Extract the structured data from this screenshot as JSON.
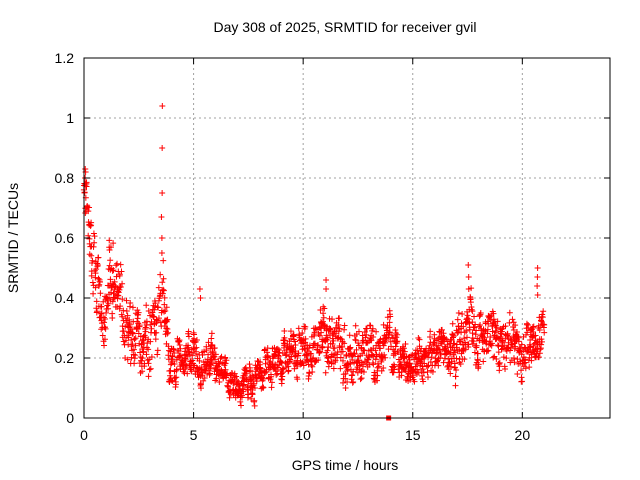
{
  "chart_data": {
    "type": "scatter",
    "title": "Day 308 of 2025, SRMTID for receiver gvil",
    "xlabel": "GPS time / hours",
    "ylabel": "SRMTID / TECUs",
    "xlim": [
      0,
      24
    ],
    "ylim": [
      0,
      1.2
    ],
    "x_ticks": [
      "0",
      "5",
      "10",
      "15",
      "20"
    ],
    "y_ticks": [
      "0",
      "0.2",
      "0.4",
      "0.6",
      "0.8",
      "1",
      "1.2"
    ],
    "grid": true,
    "legend": "none",
    "marker": "+",
    "color": "#ff0000",
    "envelope": [
      {
        "x": 0.0,
        "y": 0.8,
        "spread": 0.06
      },
      {
        "x": 0.15,
        "y": 0.7,
        "spread": 0.08
      },
      {
        "x": 0.4,
        "y": 0.58,
        "spread": 0.1
      },
      {
        "x": 0.6,
        "y": 0.42,
        "spread": 0.12
      },
      {
        "x": 0.9,
        "y": 0.32,
        "spread": 0.1
      },
      {
        "x": 1.2,
        "y": 0.48,
        "spread": 0.12
      },
      {
        "x": 1.5,
        "y": 0.5,
        "spread": 0.12
      },
      {
        "x": 1.8,
        "y": 0.3,
        "spread": 0.1
      },
      {
        "x": 2.2,
        "y": 0.24,
        "spread": 0.09
      },
      {
        "x": 2.6,
        "y": 0.22,
        "spread": 0.08
      },
      {
        "x": 3.0,
        "y": 0.32,
        "spread": 0.12
      },
      {
        "x": 3.5,
        "y": 0.38,
        "spread": 0.12
      },
      {
        "x": 3.9,
        "y": 0.22,
        "spread": 0.08
      },
      {
        "x": 4.5,
        "y": 0.18,
        "spread": 0.06
      },
      {
        "x": 5.2,
        "y": 0.22,
        "spread": 0.08
      },
      {
        "x": 5.8,
        "y": 0.18,
        "spread": 0.06
      },
      {
        "x": 6.5,
        "y": 0.15,
        "spread": 0.05
      },
      {
        "x": 7.2,
        "y": 0.11,
        "spread": 0.05
      },
      {
        "x": 7.8,
        "y": 0.12,
        "spread": 0.06
      },
      {
        "x": 8.6,
        "y": 0.19,
        "spread": 0.06
      },
      {
        "x": 9.5,
        "y": 0.2,
        "spread": 0.07
      },
      {
        "x": 10.5,
        "y": 0.24,
        "spread": 0.09
      },
      {
        "x": 11.3,
        "y": 0.26,
        "spread": 0.1
      },
      {
        "x": 12.0,
        "y": 0.22,
        "spread": 0.09
      },
      {
        "x": 13.0,
        "y": 0.23,
        "spread": 0.09
      },
      {
        "x": 14.0,
        "y": 0.24,
        "spread": 0.08
      },
      {
        "x": 14.7,
        "y": 0.18,
        "spread": 0.06
      },
      {
        "x": 15.5,
        "y": 0.21,
        "spread": 0.07
      },
      {
        "x": 16.3,
        "y": 0.22,
        "spread": 0.07
      },
      {
        "x": 17.0,
        "y": 0.22,
        "spread": 0.08
      },
      {
        "x": 17.6,
        "y": 0.3,
        "spread": 0.1
      },
      {
        "x": 18.4,
        "y": 0.28,
        "spread": 0.09
      },
      {
        "x": 19.2,
        "y": 0.26,
        "spread": 0.09
      },
      {
        "x": 19.9,
        "y": 0.22,
        "spread": 0.08
      },
      {
        "x": 20.5,
        "y": 0.24,
        "spread": 0.08
      },
      {
        "x": 20.9,
        "y": 0.3,
        "spread": 0.08
      }
    ],
    "spikes": [
      {
        "x": 0.05,
        "values": [
          0.83,
          0.82,
          0.8,
          0.78
        ]
      },
      {
        "x": 3.55,
        "values": [
          1.04,
          0.9,
          0.75,
          0.67,
          0.6,
          0.55
        ]
      },
      {
        "x": 20.7,
        "values": [
          0.5,
          0.47,
          0.44,
          0.41
        ]
      },
      {
        "x": 17.55,
        "values": [
          0.51,
          0.47,
          0.43
        ]
      },
      {
        "x": 11.05,
        "values": [
          0.46,
          0.43
        ]
      },
      {
        "x": 5.3,
        "values": [
          0.43,
          0.4
        ]
      }
    ],
    "isolated_points": [
      {
        "x": 13.9,
        "y": 0.0
      }
    ],
    "sample_interval_hours": 0.0167,
    "x_end": 21.0
  }
}
